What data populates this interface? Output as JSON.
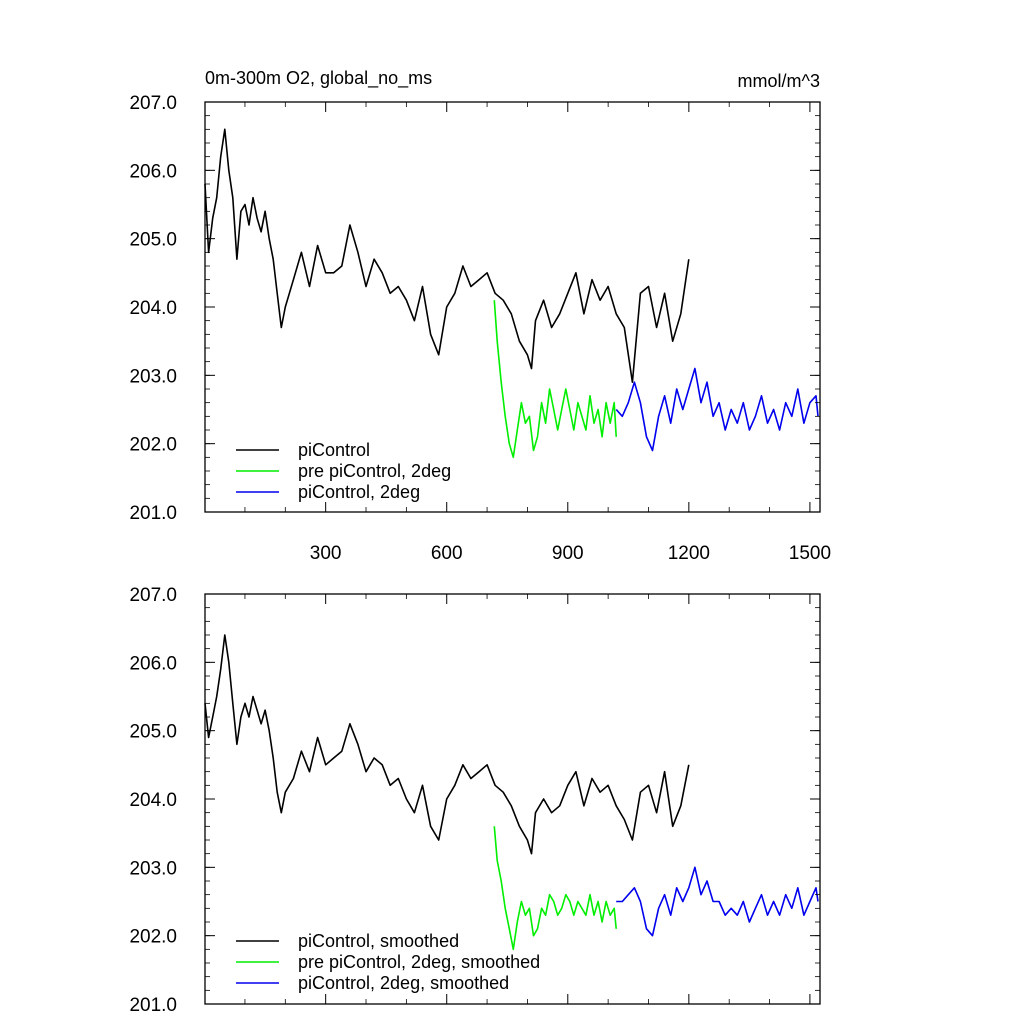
{
  "chart_data": [
    {
      "type": "line",
      "title": "0m-300m O2, global_no_ms",
      "units": "mmol/m^3",
      "xlim": [
        1,
        1525
      ],
      "ylim": [
        201.0,
        207.0
      ],
      "xticks": [
        300,
        600,
        900,
        1200,
        1500
      ],
      "xtick_labels": [
        "300",
        "600",
        "900",
        "1200",
        "1500"
      ],
      "yticks": [
        201.0,
        202.0,
        203.0,
        204.0,
        205.0,
        206.0,
        207.0
      ],
      "ytick_labels": [
        "201.0",
        "202.0",
        "203.0",
        "204.0",
        "205.0",
        "206.0",
        "207.0"
      ],
      "grid": false,
      "legend_position": "bottom-left",
      "series": [
        {
          "name": "piControl",
          "color": "#000000",
          "x": [
            1,
            10,
            20,
            30,
            40,
            50,
            60,
            70,
            80,
            90,
            100,
            110,
            120,
            130,
            140,
            150,
            160,
            170,
            180,
            190,
            200,
            220,
            240,
            260,
            280,
            300,
            320,
            340,
            360,
            380,
            400,
            420,
            440,
            460,
            480,
            500,
            520,
            540,
            560,
            580,
            600,
            620,
            640,
            660,
            680,
            700,
            720,
            740,
            760,
            780,
            800,
            810,
            820,
            840,
            860,
            880,
            900,
            920,
            940,
            960,
            980,
            1000,
            1020,
            1040,
            1060,
            1080,
            1100,
            1120,
            1140,
            1160,
            1180,
            1200
          ],
          "y": [
            205.8,
            204.8,
            205.3,
            205.6,
            206.2,
            206.6,
            206.0,
            205.6,
            204.7,
            205.4,
            205.5,
            205.2,
            205.6,
            205.3,
            205.1,
            205.4,
            205.0,
            204.7,
            204.2,
            203.7,
            204.0,
            204.4,
            204.8,
            204.3,
            204.9,
            204.5,
            204.5,
            204.6,
            205.2,
            204.8,
            204.3,
            204.7,
            204.5,
            204.2,
            204.3,
            204.1,
            203.8,
            204.3,
            203.6,
            203.3,
            204.0,
            204.2,
            204.6,
            204.3,
            204.4,
            204.5,
            204.2,
            204.1,
            203.9,
            203.5,
            203.3,
            203.1,
            203.8,
            204.1,
            203.7,
            203.9,
            204.2,
            204.5,
            203.9,
            204.4,
            204.1,
            204.3,
            203.9,
            203.7,
            202.9,
            204.2,
            204.3,
            203.7,
            204.2,
            203.5,
            203.9,
            204.7
          ]
        },
        {
          "name": "pre piControl, 2deg",
          "color": "#00ee00",
          "x": [
            718,
            725,
            735,
            745,
            755,
            765,
            775,
            785,
            795,
            805,
            815,
            825,
            835,
            845,
            855,
            865,
            875,
            885,
            895,
            905,
            915,
            925,
            935,
            945,
            955,
            965,
            975,
            985,
            995,
            1005,
            1015,
            1020
          ],
          "y": [
            204.1,
            203.5,
            202.9,
            202.4,
            202.0,
            201.8,
            202.2,
            202.6,
            202.3,
            202.4,
            201.9,
            202.1,
            202.6,
            202.3,
            202.8,
            202.5,
            202.2,
            202.5,
            202.8,
            202.5,
            202.2,
            202.6,
            202.4,
            202.2,
            202.7,
            202.3,
            202.5,
            202.1,
            202.6,
            202.3,
            202.6,
            202.1
          ]
        },
        {
          "name": "piControl, 2deg",
          "color": "#0000ee",
          "x": [
            1020,
            1035,
            1050,
            1065,
            1080,
            1095,
            1110,
            1125,
            1140,
            1155,
            1170,
            1185,
            1200,
            1215,
            1230,
            1245,
            1260,
            1275,
            1290,
            1305,
            1320,
            1335,
            1350,
            1365,
            1380,
            1395,
            1410,
            1425,
            1440,
            1455,
            1470,
            1485,
            1500,
            1515,
            1520
          ],
          "y": [
            202.5,
            202.4,
            202.6,
            202.9,
            202.6,
            202.1,
            201.9,
            202.4,
            202.7,
            202.3,
            202.8,
            202.5,
            202.8,
            203.1,
            202.6,
            202.9,
            202.4,
            202.6,
            202.2,
            202.5,
            202.3,
            202.6,
            202.2,
            202.4,
            202.7,
            202.3,
            202.5,
            202.2,
            202.6,
            202.4,
            202.8,
            202.3,
            202.6,
            202.7,
            202.4
          ]
        }
      ]
    },
    {
      "type": "line",
      "xlim": [
        1,
        1525
      ],
      "ylim": [
        201.0,
        207.0
      ],
      "xticks": [
        300,
        600,
        900,
        1200,
        1500
      ],
      "yticks": [
        201.0,
        202.0,
        203.0,
        204.0,
        205.0,
        206.0,
        207.0
      ],
      "ytick_labels": [
        "201.0",
        "202.0",
        "203.0",
        "204.0",
        "205.0",
        "206.0",
        "207.0"
      ],
      "grid": false,
      "legend_position": "bottom-left",
      "series": [
        {
          "name": "piControl, smoothed",
          "color": "#000000",
          "x": [
            1,
            10,
            20,
            30,
            40,
            50,
            60,
            70,
            80,
            90,
            100,
            110,
            120,
            130,
            140,
            150,
            160,
            170,
            180,
            190,
            200,
            220,
            240,
            260,
            280,
            300,
            320,
            340,
            360,
            380,
            400,
            420,
            440,
            460,
            480,
            500,
            520,
            540,
            560,
            580,
            600,
            620,
            640,
            660,
            680,
            700,
            720,
            740,
            760,
            780,
            800,
            810,
            820,
            840,
            860,
            880,
            900,
            920,
            940,
            960,
            980,
            1000,
            1020,
            1040,
            1060,
            1080,
            1100,
            1120,
            1140,
            1160,
            1180,
            1200
          ],
          "y": [
            205.4,
            204.9,
            205.2,
            205.5,
            205.9,
            206.4,
            206.0,
            205.4,
            204.8,
            205.2,
            205.4,
            205.2,
            205.5,
            205.3,
            205.1,
            205.3,
            205.0,
            204.6,
            204.1,
            203.8,
            204.1,
            204.3,
            204.7,
            204.4,
            204.9,
            204.5,
            204.6,
            204.7,
            205.1,
            204.8,
            204.4,
            204.6,
            204.5,
            204.2,
            204.3,
            204.0,
            203.8,
            204.2,
            203.6,
            203.4,
            204.0,
            204.2,
            204.5,
            204.3,
            204.4,
            204.5,
            204.2,
            204.1,
            203.9,
            203.6,
            203.4,
            203.2,
            203.8,
            204.0,
            203.8,
            203.9,
            204.2,
            204.4,
            203.9,
            204.3,
            204.1,
            204.2,
            203.9,
            203.7,
            203.4,
            204.1,
            204.2,
            203.8,
            204.4,
            203.6,
            203.9,
            204.5
          ]
        },
        {
          "name": "pre piControl, 2deg, smoothed",
          "color": "#00ee00",
          "x": [
            718,
            725,
            735,
            745,
            755,
            765,
            775,
            785,
            795,
            805,
            815,
            825,
            835,
            845,
            855,
            865,
            875,
            885,
            895,
            905,
            915,
            925,
            935,
            945,
            955,
            965,
            975,
            985,
            995,
            1005,
            1015,
            1020
          ],
          "y": [
            203.6,
            203.1,
            202.8,
            202.4,
            202.1,
            201.8,
            202.2,
            202.5,
            202.3,
            202.4,
            202.0,
            202.1,
            202.4,
            202.3,
            202.6,
            202.5,
            202.3,
            202.4,
            202.6,
            202.5,
            202.3,
            202.5,
            202.4,
            202.3,
            202.6,
            202.3,
            202.5,
            202.2,
            202.5,
            202.3,
            202.4,
            202.1
          ]
        },
        {
          "name": "piControl, 2deg, smoothed",
          "color": "#0000ee",
          "x": [
            1020,
            1035,
            1050,
            1065,
            1080,
            1095,
            1110,
            1125,
            1140,
            1155,
            1170,
            1185,
            1200,
            1215,
            1230,
            1245,
            1260,
            1275,
            1290,
            1305,
            1320,
            1335,
            1350,
            1365,
            1380,
            1395,
            1410,
            1425,
            1440,
            1455,
            1470,
            1485,
            1500,
            1515,
            1520
          ],
          "y": [
            202.5,
            202.5,
            202.6,
            202.7,
            202.5,
            202.1,
            202.0,
            202.4,
            202.6,
            202.3,
            202.7,
            202.5,
            202.7,
            203.0,
            202.6,
            202.8,
            202.5,
            202.5,
            202.3,
            202.4,
            202.3,
            202.5,
            202.2,
            202.4,
            202.6,
            202.3,
            202.5,
            202.3,
            202.6,
            202.4,
            202.7,
            202.3,
            202.5,
            202.7,
            202.5
          ]
        }
      ]
    }
  ]
}
